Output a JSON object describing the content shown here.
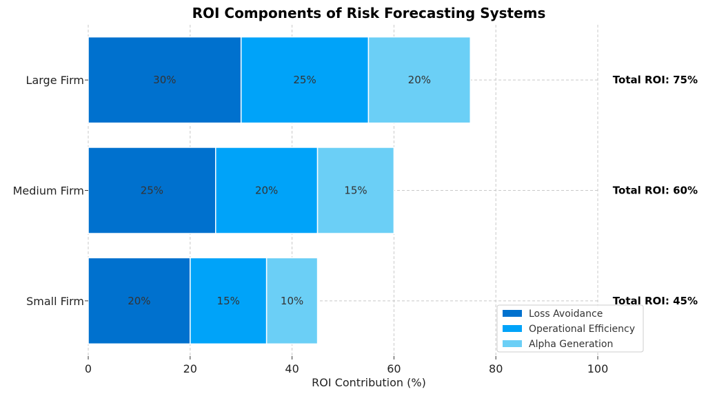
{
  "chart_data": {
    "type": "bar",
    "orientation": "horizontal",
    "stacked": true,
    "title": "ROI Components of Risk Forecasting Systems",
    "xlabel": "ROI Contribution (%)",
    "ylabel": "",
    "xlim": [
      0,
      100
    ],
    "xticks": [
      0,
      20,
      40,
      60,
      80,
      100
    ],
    "categories": [
      "Small Firm",
      "Medium Firm",
      "Large Firm"
    ],
    "series": [
      {
        "name": "Loss Avoidance",
        "values": [
          20,
          25,
          30
        ],
        "color": "#0071CE"
      },
      {
        "name": "Operational Efficiency",
        "values": [
          15,
          20,
          25
        ],
        "color": "#00A3F9"
      },
      {
        "name": "Alpha Generation",
        "values": [
          10,
          15,
          20
        ],
        "color": "#6BCFF6"
      }
    ],
    "segment_label_suffix": "%",
    "totals": [
      "Total ROI: 45%",
      "Total ROI: 60%",
      "Total ROI: 75%"
    ],
    "grid": true,
    "legend_position": "bottom-right"
  }
}
